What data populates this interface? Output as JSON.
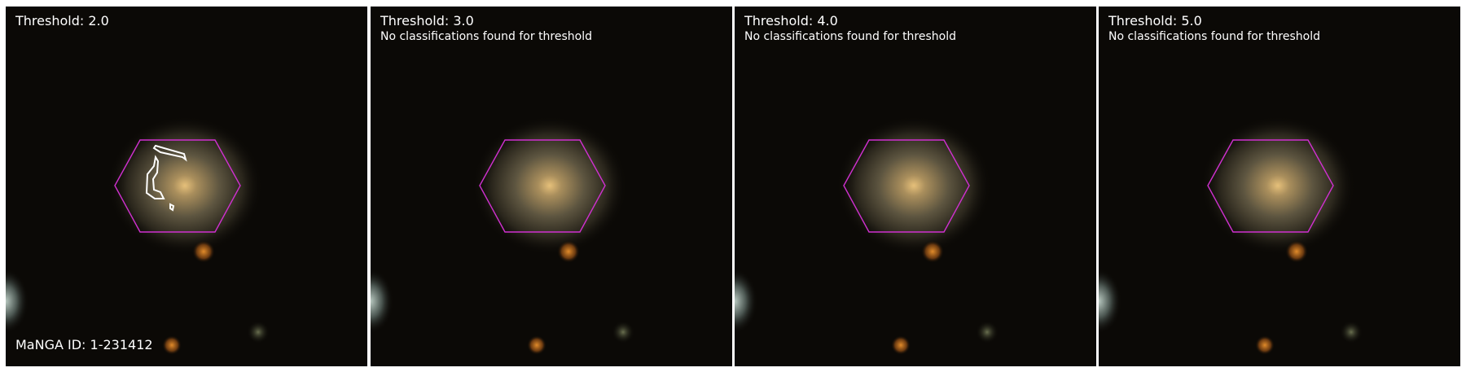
{
  "panels": [
    {
      "title": "Threshold: 2.0",
      "subtitle": "",
      "footer": "MaNGA ID: 1-231412",
      "has_contours": true
    },
    {
      "title": "Threshold: 3.0",
      "subtitle": "No classifications found for threshold",
      "footer": "",
      "has_contours": false
    },
    {
      "title": "Threshold: 4.0",
      "subtitle": "No classifications found for threshold",
      "footer": "",
      "has_contours": false
    },
    {
      "title": "Threshold: 5.0",
      "subtitle": "No classifications found for threshold",
      "footer": "",
      "has_contours": false
    }
  ],
  "colors": {
    "background": "#0b0906",
    "hexagon": "#d030d0",
    "contour": "#ffffff",
    "galaxy_core": "#d6b57a",
    "star": "#c8741e"
  }
}
